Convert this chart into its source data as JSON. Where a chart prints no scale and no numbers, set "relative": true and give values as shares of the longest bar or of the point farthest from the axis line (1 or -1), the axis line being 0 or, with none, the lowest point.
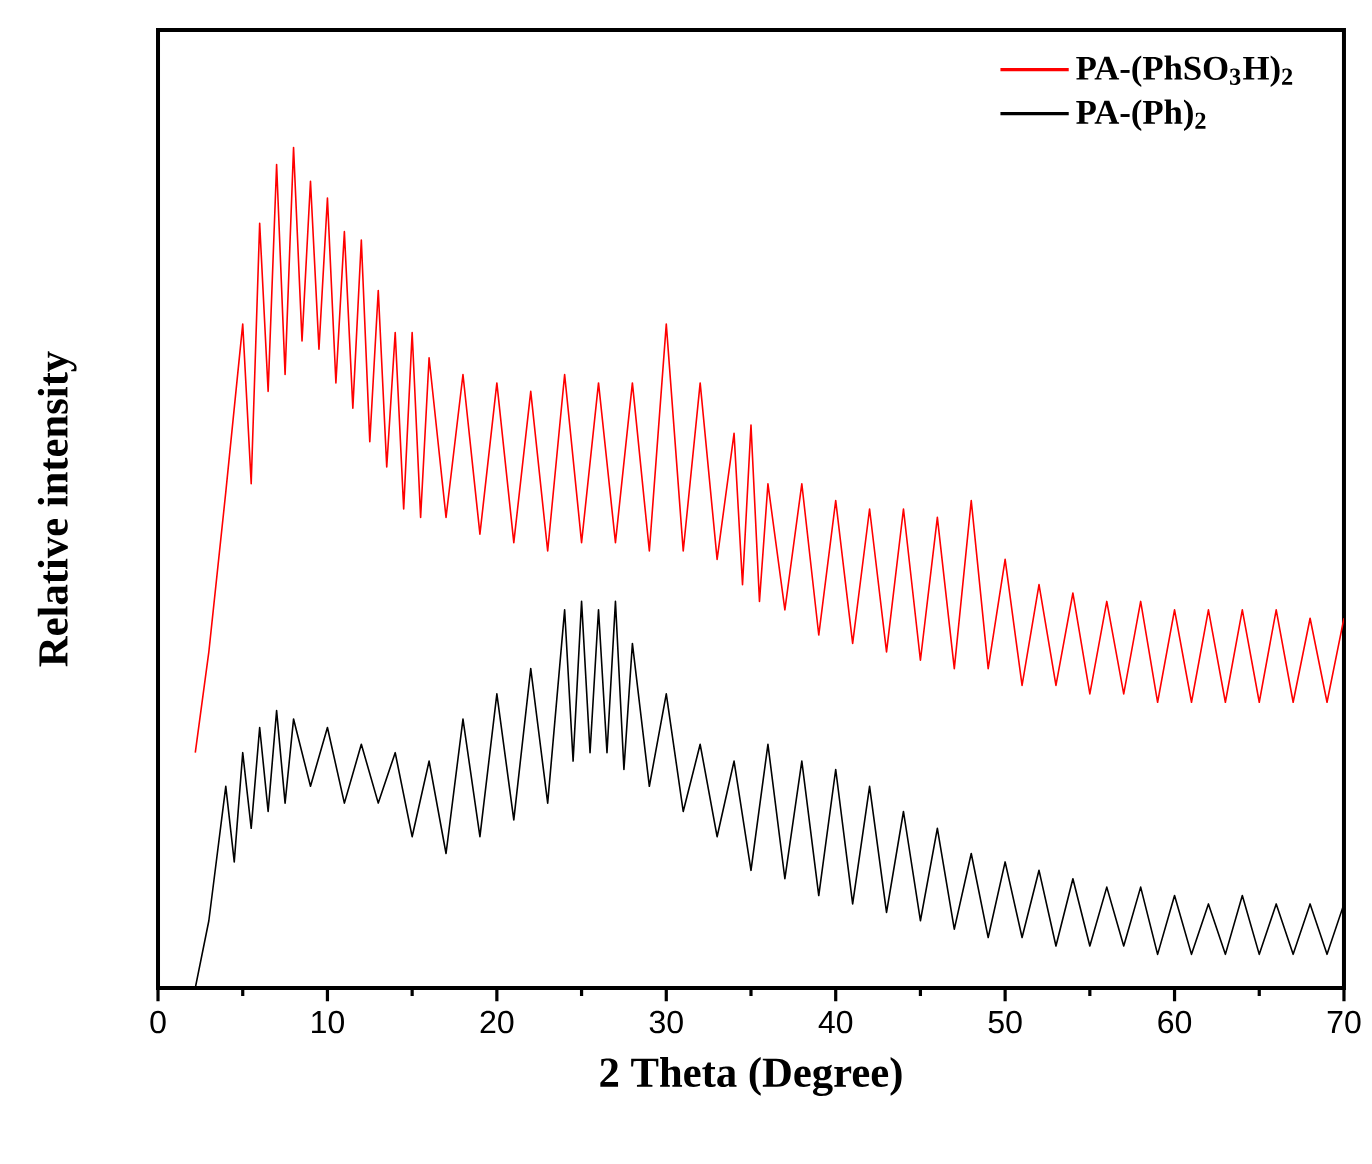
{
  "chart_data": {
    "type": "line",
    "relative": true,
    "xlabel": "2 Theta (Degree)",
    "ylabel": "Relative intensity",
    "xlim": [
      0,
      70
    ],
    "xticks": [
      0,
      10,
      20,
      30,
      40,
      50,
      60,
      70
    ],
    "legend": "top right",
    "marker": "none",
    "line_style": "solid",
    "grid": false,
    "series": [
      {
        "name": "PA-(PhSO$_{3}$H)$_{2}$",
        "color": "#ff0000",
        "x": [
          2.2,
          3,
          4,
          5,
          5.5,
          6,
          6.5,
          7,
          7.5,
          8,
          8.5,
          9,
          9.5,
          10,
          10.5,
          11,
          11.5,
          12,
          12.5,
          13,
          13.5,
          14,
          14.5,
          15,
          15.5,
          16,
          17,
          18,
          19,
          20,
          21,
          22,
          23,
          24,
          25,
          26,
          27,
          28,
          29,
          30,
          31,
          32,
          33,
          34,
          34.5,
          35,
          35.5,
          36,
          37,
          38,
          39,
          40,
          41,
          42,
          43,
          44,
          45,
          46,
          47,
          48,
          49,
          50,
          51,
          52,
          53,
          54,
          55,
          56,
          57,
          58,
          59,
          60,
          61,
          62,
          63,
          64,
          65,
          66,
          67,
          68,
          69,
          70
        ],
        "values": [
          0.28,
          0.4,
          0.59,
          0.79,
          0.6,
          0.91,
          0.71,
          0.98,
          0.73,
          1.0,
          0.77,
          0.96,
          0.76,
          0.94,
          0.72,
          0.9,
          0.69,
          0.89,
          0.65,
          0.83,
          0.62,
          0.78,
          0.57,
          0.78,
          0.56,
          0.75,
          0.56,
          0.73,
          0.54,
          0.72,
          0.53,
          0.71,
          0.52,
          0.73,
          0.53,
          0.72,
          0.53,
          0.72,
          0.52,
          0.79,
          0.52,
          0.72,
          0.51,
          0.66,
          0.48,
          0.67,
          0.46,
          0.6,
          0.45,
          0.6,
          0.42,
          0.58,
          0.41,
          0.57,
          0.4,
          0.57,
          0.39,
          0.56,
          0.38,
          0.58,
          0.38,
          0.51,
          0.36,
          0.48,
          0.36,
          0.47,
          0.35,
          0.46,
          0.35,
          0.46,
          0.34,
          0.45,
          0.34,
          0.45,
          0.34,
          0.45,
          0.34,
          0.45,
          0.34,
          0.44,
          0.34,
          0.44
        ]
      },
      {
        "name": "PA-(Ph)$_{2}$",
        "color": "#000000",
        "x": [
          2.2,
          3,
          4,
          4.5,
          5,
          5.5,
          6,
          6.5,
          7,
          7.5,
          8,
          9,
          10,
          11,
          12,
          13,
          14,
          15,
          16,
          17,
          18,
          19,
          20,
          21,
          22,
          23,
          24,
          24.5,
          25,
          25.5,
          26,
          26.5,
          27,
          27.5,
          28,
          29,
          30,
          31,
          32,
          33,
          34,
          35,
          36,
          37,
          38,
          39,
          40,
          41,
          42,
          43,
          44,
          45,
          46,
          47,
          48,
          49,
          50,
          51,
          52,
          53,
          54,
          55,
          56,
          57,
          58,
          59,
          60,
          61,
          62,
          63,
          64,
          65,
          66,
          67,
          68,
          69,
          70
        ],
        "values": [
          0.0,
          0.08,
          0.24,
          0.15,
          0.28,
          0.19,
          0.31,
          0.21,
          0.33,
          0.22,
          0.32,
          0.24,
          0.31,
          0.22,
          0.29,
          0.22,
          0.28,
          0.18,
          0.27,
          0.16,
          0.32,
          0.18,
          0.35,
          0.2,
          0.38,
          0.22,
          0.45,
          0.27,
          0.46,
          0.28,
          0.45,
          0.28,
          0.46,
          0.26,
          0.41,
          0.24,
          0.35,
          0.21,
          0.29,
          0.18,
          0.27,
          0.14,
          0.29,
          0.13,
          0.27,
          0.11,
          0.26,
          0.1,
          0.24,
          0.09,
          0.21,
          0.08,
          0.19,
          0.07,
          0.16,
          0.06,
          0.15,
          0.06,
          0.14,
          0.05,
          0.13,
          0.05,
          0.12,
          0.05,
          0.12,
          0.04,
          0.11,
          0.04,
          0.1,
          0.04,
          0.11,
          0.04,
          0.1,
          0.04,
          0.1,
          0.04,
          0.1
        ]
      }
    ]
  }
}
